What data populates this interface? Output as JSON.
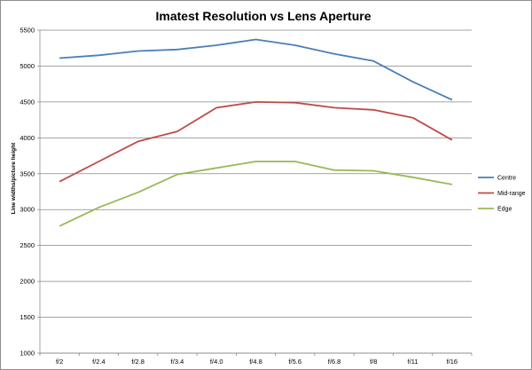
{
  "chart_data": {
    "type": "line",
    "title": "Imatest Resolution vs Lens Aperture",
    "xlabel": "",
    "ylabel": "Line widths/picture height",
    "categories": [
      "f/2",
      "f/2.4",
      "f/2.8",
      "f/3.4",
      "f/4.0",
      "f/4.8",
      "f/5.6",
      "f/6.8",
      "f/8",
      "f/11",
      "f/16"
    ],
    "ylim": [
      1000,
      5500
    ],
    "ytick_step": 500,
    "grid": "horizontal",
    "legend_position": "right",
    "series": [
      {
        "name": "Centre",
        "color": "#4a7ebb",
        "values": [
          5110,
          5150,
          5210,
          5230,
          5290,
          5370,
          5290,
          5170,
          5070,
          4780,
          4530
        ]
      },
      {
        "name": "Mid-range",
        "color": "#be4b48",
        "values": [
          3390,
          3670,
          3950,
          4090,
          4420,
          4500,
          4490,
          4420,
          4390,
          4280,
          3970
        ]
      },
      {
        "name": "Edge",
        "color": "#98b954",
        "values": [
          2770,
          3030,
          3240,
          3490,
          3580,
          3670,
          3670,
          3550,
          3540,
          3450,
          3350
        ]
      }
    ]
  }
}
